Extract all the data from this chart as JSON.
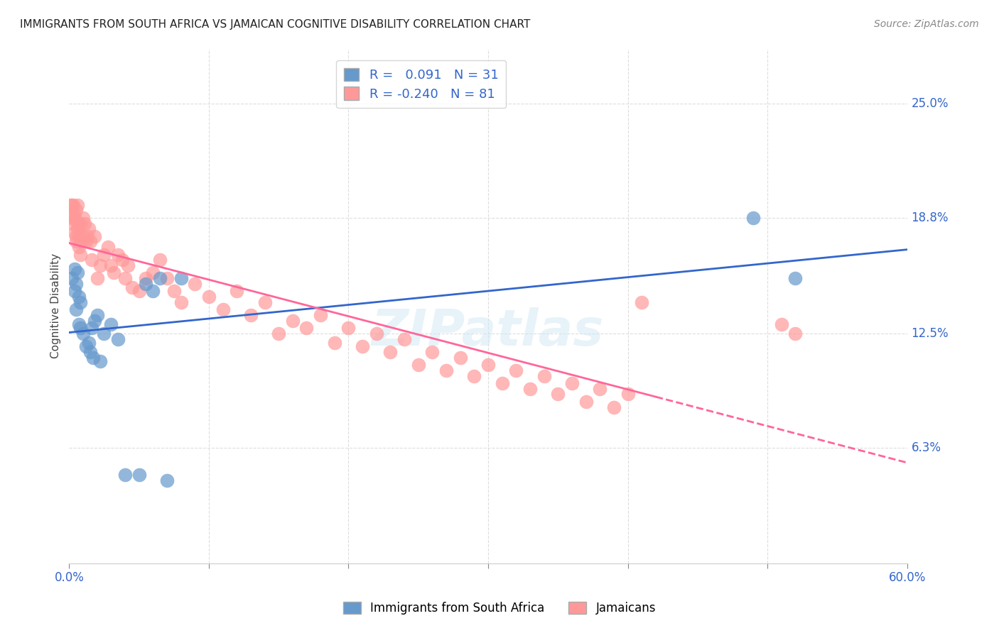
{
  "title": "IMMIGRANTS FROM SOUTH AFRICA VS JAMAICAN COGNITIVE DISABILITY CORRELATION CHART",
  "source": "Source: ZipAtlas.com",
  "ylabel": "Cognitive Disability",
  "ytick_labels": [
    "25.0%",
    "18.8%",
    "12.5%",
    "6.3%"
  ],
  "ytick_values": [
    0.25,
    0.188,
    0.125,
    0.063
  ],
  "blue_color": "#6699CC",
  "pink_color": "#FF9999",
  "blue_line_color": "#3366CC",
  "pink_line_color": "#FF6699",
  "watermark": "ZIPatlas",
  "south_africa_x": [
    0.002,
    0.004,
    0.004,
    0.005,
    0.005,
    0.006,
    0.007,
    0.007,
    0.008,
    0.008,
    0.01,
    0.012,
    0.014,
    0.015,
    0.016,
    0.017,
    0.018,
    0.02,
    0.022,
    0.025,
    0.03,
    0.035,
    0.04,
    0.05,
    0.055,
    0.06,
    0.065,
    0.07,
    0.08,
    0.49,
    0.52
  ],
  "south_africa_y": [
    0.155,
    0.16,
    0.148,
    0.152,
    0.138,
    0.158,
    0.145,
    0.13,
    0.128,
    0.142,
    0.125,
    0.118,
    0.12,
    0.115,
    0.128,
    0.112,
    0.132,
    0.135,
    0.11,
    0.125,
    0.13,
    0.122,
    0.048,
    0.048,
    0.152,
    0.148,
    0.155,
    0.045,
    0.155,
    0.188,
    0.155
  ],
  "jamaicans_x": [
    0.001,
    0.002,
    0.002,
    0.003,
    0.003,
    0.003,
    0.004,
    0.004,
    0.005,
    0.005,
    0.005,
    0.006,
    0.006,
    0.006,
    0.007,
    0.007,
    0.008,
    0.008,
    0.009,
    0.01,
    0.01,
    0.011,
    0.012,
    0.013,
    0.014,
    0.015,
    0.016,
    0.018,
    0.02,
    0.022,
    0.025,
    0.028,
    0.03,
    0.032,
    0.035,
    0.038,
    0.04,
    0.042,
    0.045,
    0.05,
    0.055,
    0.06,
    0.065,
    0.07,
    0.075,
    0.08,
    0.09,
    0.1,
    0.11,
    0.12,
    0.13,
    0.14,
    0.15,
    0.16,
    0.17,
    0.18,
    0.19,
    0.2,
    0.21,
    0.22,
    0.23,
    0.24,
    0.25,
    0.26,
    0.27,
    0.28,
    0.29,
    0.3,
    0.31,
    0.32,
    0.33,
    0.34,
    0.35,
    0.36,
    0.37,
    0.38,
    0.39,
    0.4,
    0.41,
    0.51,
    0.52
  ],
  "jamaicans_y": [
    0.195,
    0.195,
    0.188,
    0.185,
    0.19,
    0.195,
    0.18,
    0.188,
    0.175,
    0.178,
    0.192,
    0.185,
    0.182,
    0.195,
    0.172,
    0.178,
    0.185,
    0.168,
    0.175,
    0.188,
    0.178,
    0.185,
    0.175,
    0.178,
    0.182,
    0.175,
    0.165,
    0.178,
    0.155,
    0.162,
    0.168,
    0.172,
    0.162,
    0.158,
    0.168,
    0.165,
    0.155,
    0.162,
    0.15,
    0.148,
    0.155,
    0.158,
    0.165,
    0.155,
    0.148,
    0.142,
    0.152,
    0.145,
    0.138,
    0.148,
    0.135,
    0.142,
    0.125,
    0.132,
    0.128,
    0.135,
    0.12,
    0.128,
    0.118,
    0.125,
    0.115,
    0.122,
    0.108,
    0.115,
    0.105,
    0.112,
    0.102,
    0.108,
    0.098,
    0.105,
    0.095,
    0.102,
    0.092,
    0.098,
    0.088,
    0.095,
    0.085,
    0.092,
    0.142,
    0.13,
    0.125
  ],
  "xlim": [
    0.0,
    0.6
  ],
  "ylim": [
    0.0,
    0.28
  ]
}
